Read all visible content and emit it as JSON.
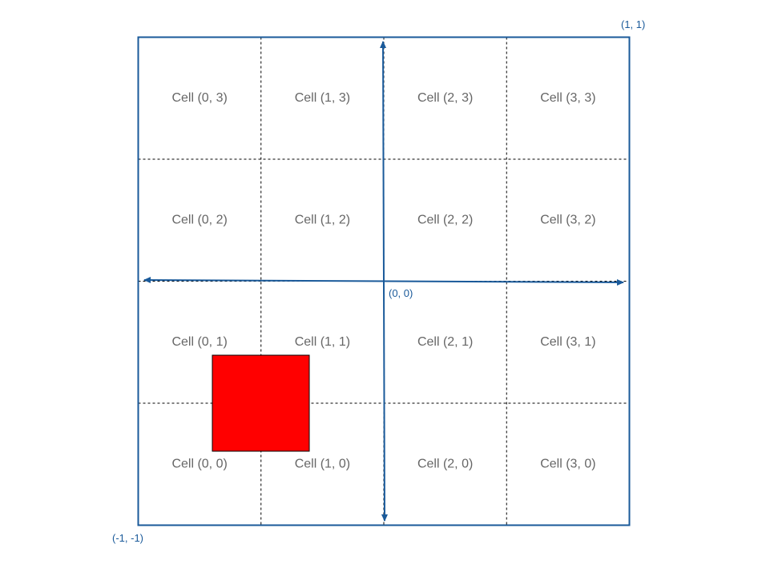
{
  "colors": {
    "frame": "#1a5a9a",
    "grid": "#000000",
    "label": "#666666",
    "square": "#ff0000"
  },
  "grid": {
    "columns": 4,
    "rows": 4
  },
  "cells": [
    {
      "col": 0,
      "row": 3,
      "label": "Cell (0, 3)"
    },
    {
      "col": 1,
      "row": 3,
      "label": "Cell (1, 3)"
    },
    {
      "col": 2,
      "row": 3,
      "label": "Cell (2, 3)"
    },
    {
      "col": 3,
      "row": 3,
      "label": "Cell (3, 3)"
    },
    {
      "col": 0,
      "row": 2,
      "label": "Cell (0, 2)"
    },
    {
      "col": 1,
      "row": 2,
      "label": "Cell (1, 2)"
    },
    {
      "col": 2,
      "row": 2,
      "label": "Cell (2, 2)"
    },
    {
      "col": 3,
      "row": 2,
      "label": "Cell (3, 2)"
    },
    {
      "col": 0,
      "row": 1,
      "label": "Cell (0, 1)"
    },
    {
      "col": 1,
      "row": 1,
      "label": "Cell (1, 1)"
    },
    {
      "col": 2,
      "row": 1,
      "label": "Cell (2, 1)"
    },
    {
      "col": 3,
      "row": 1,
      "label": "Cell (3, 1)"
    },
    {
      "col": 0,
      "row": 0,
      "label": "Cell (0, 0)"
    },
    {
      "col": 1,
      "row": 0,
      "label": "Cell (1, 0)"
    },
    {
      "col": 2,
      "row": 0,
      "label": "Cell (2, 0)"
    },
    {
      "col": 3,
      "row": 0,
      "label": "Cell (3, 0)"
    }
  ],
  "coords": {
    "top_right": "(1, 1)",
    "origin": "(0, 0)",
    "bottom_left": "(-1, -1)"
  }
}
